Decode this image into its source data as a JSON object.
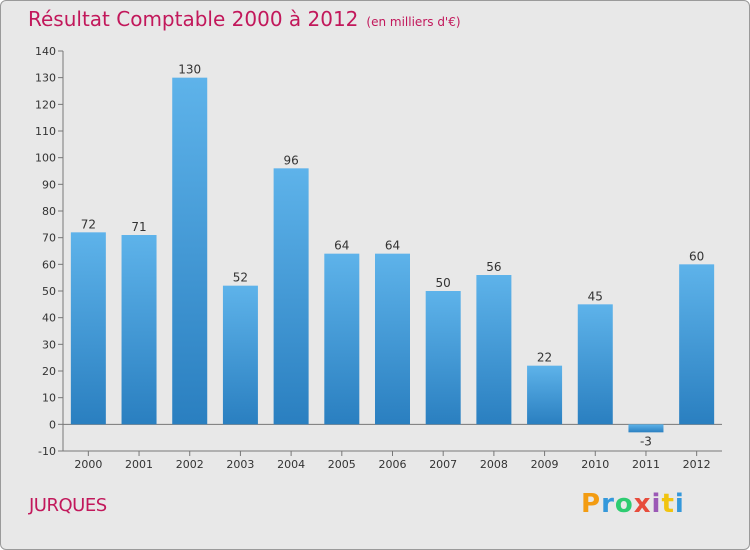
{
  "chart_data": {
    "type": "bar",
    "title": "Résultat Comptable 2000 à 2012",
    "subtitle": "(en milliers d'€)",
    "categories": [
      "2000",
      "2001",
      "2002",
      "2003",
      "2004",
      "2005",
      "2006",
      "2007",
      "2008",
      "2009",
      "2010",
      "2011",
      "2012"
    ],
    "values": [
      72,
      71,
      130,
      52,
      96,
      64,
      64,
      50,
      56,
      22,
      45,
      -3,
      60
    ],
    "ylim": [
      -10,
      140
    ],
    "yticks": [
      -10,
      0,
      10,
      20,
      30,
      40,
      50,
      60,
      70,
      80,
      90,
      100,
      110,
      120,
      130,
      140
    ],
    "grid": false,
    "bar_color": "#4aa3e0",
    "xlabel": "",
    "ylabel": ""
  },
  "commune": "JURQUES",
  "logo": {
    "letters": [
      "P",
      "r",
      "o",
      "x",
      "i",
      "t",
      "i"
    ],
    "colors": [
      "#f39c12",
      "#3498db",
      "#2ecc71",
      "#e74c3c",
      "#9b59b6",
      "#f1c40f",
      "#3498db"
    ]
  }
}
